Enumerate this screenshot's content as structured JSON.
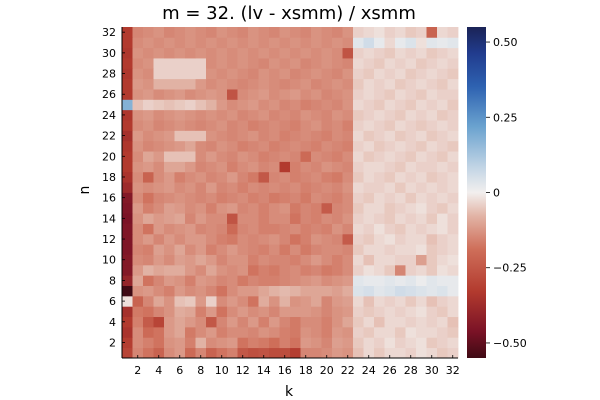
{
  "chart_data": {
    "type": "heatmap",
    "title": "m = 32. (lv - xsmm) / xsmm",
    "xlabel": "k",
    "ylabel": "n",
    "x": [
      1,
      2,
      3,
      4,
      5,
      6,
      7,
      8,
      9,
      10,
      11,
      12,
      13,
      14,
      15,
      16,
      17,
      18,
      19,
      20,
      21,
      22,
      23,
      24,
      25,
      26,
      27,
      28,
      29,
      30,
      31,
      32
    ],
    "y": [
      1,
      2,
      3,
      4,
      5,
      6,
      7,
      8,
      9,
      10,
      11,
      12,
      13,
      14,
      15,
      16,
      17,
      18,
      19,
      20,
      21,
      22,
      23,
      24,
      25,
      26,
      27,
      28,
      29,
      30,
      31,
      32
    ],
    "xticks": [
      2,
      4,
      6,
      8,
      10,
      12,
      14,
      16,
      18,
      20,
      22,
      24,
      26,
      28,
      30,
      32
    ],
    "yticks": [
      2,
      4,
      6,
      8,
      10,
      12,
      14,
      16,
      18,
      20,
      22,
      24,
      26,
      28,
      30,
      32
    ],
    "clim": [
      -0.55,
      0.55
    ],
    "colorbar_ticks": [
      0.5,
      0.25,
      0,
      -0.25,
      -0.5
    ],
    "colorbar_tick_labels": [
      "0.50",
      "0.25",
      "0",
      "−0.25",
      "−0.50"
    ],
    "colormap": {
      "stops": [
        [
          0.0,
          "#3f0a14"
        ],
        [
          0.08,
          "#7a1226"
        ],
        [
          0.2,
          "#b23a2e"
        ],
        [
          0.33,
          "#cf6f5a"
        ],
        [
          0.43,
          "#e2b4a6"
        ],
        [
          0.5,
          "#f2efee"
        ],
        [
          0.57,
          "#c6d7e6"
        ],
        [
          0.7,
          "#6aa2cf"
        ],
        [
          0.82,
          "#2e62b1"
        ],
        [
          0.92,
          "#213c8e"
        ],
        [
          1.0,
          "#1b2356"
        ]
      ]
    },
    "z": [
      [
        -0.3,
        -0.15,
        -0.18,
        -0.22,
        -0.14,
        -0.12,
        -0.2,
        -0.15,
        -0.22,
        -0.18,
        -0.16,
        -0.25,
        -0.27,
        -0.26,
        -0.28,
        -0.28,
        -0.32,
        -0.15,
        -0.15,
        -0.14,
        -0.12,
        -0.13,
        -0.06,
        -0.03,
        -0.05,
        -0.03,
        -0.03,
        -0.04,
        -0.02,
        -0.03,
        -0.05,
        -0.04
      ],
      [
        -0.32,
        -0.14,
        -0.16,
        -0.18,
        -0.13,
        -0.12,
        -0.16,
        -0.08,
        -0.14,
        -0.13,
        -0.12,
        -0.18,
        -0.16,
        -0.17,
        -0.19,
        -0.16,
        -0.18,
        -0.12,
        -0.13,
        -0.15,
        -0.11,
        -0.12,
        -0.05,
        -0.03,
        -0.04,
        -0.02,
        -0.04,
        -0.03,
        -0.02,
        -0.05,
        -0.04,
        -0.03
      ],
      [
        -0.35,
        -0.14,
        -0.2,
        -0.18,
        -0.12,
        -0.1,
        -0.17,
        -0.14,
        -0.12,
        -0.16,
        -0.14,
        -0.14,
        -0.15,
        -0.13,
        -0.14,
        -0.16,
        -0.17,
        -0.13,
        -0.14,
        -0.16,
        -0.12,
        -0.13,
        -0.04,
        -0.05,
        -0.03,
        -0.03,
        -0.05,
        -0.02,
        -0.03,
        -0.03,
        -0.04,
        -0.05
      ],
      [
        -0.33,
        -0.16,
        -0.24,
        -0.3,
        -0.12,
        -0.1,
        -0.12,
        -0.14,
        -0.25,
        -0.15,
        -0.12,
        -0.15,
        -0.12,
        -0.16,
        -0.12,
        -0.15,
        -0.17,
        -0.14,
        -0.14,
        -0.16,
        -0.13,
        -0.1,
        -0.05,
        -0.03,
        -0.06,
        -0.03,
        -0.03,
        -0.04,
        -0.03,
        -0.04,
        -0.03,
        -0.06
      ],
      [
        -0.36,
        -0.17,
        -0.18,
        -0.15,
        -0.13,
        -0.09,
        -0.1,
        -0.16,
        -0.12,
        -0.18,
        -0.14,
        -0.12,
        -0.14,
        -0.13,
        -0.15,
        -0.12,
        -0.12,
        -0.12,
        -0.13,
        -0.15,
        -0.13,
        -0.12,
        -0.04,
        -0.05,
        -0.04,
        -0.03,
        -0.04,
        -0.03,
        -0.02,
        -0.04,
        -0.05,
        -0.03
      ],
      [
        -0.02,
        -0.22,
        -0.15,
        -0.1,
        -0.13,
        -0.06,
        -0.05,
        -0.12,
        -0.04,
        -0.14,
        -0.12,
        -0.14,
        -0.18,
        -0.09,
        -0.13,
        -0.08,
        -0.13,
        -0.12,
        -0.1,
        -0.15,
        -0.12,
        -0.11,
        -0.03,
        -0.06,
        -0.03,
        -0.04,
        -0.03,
        -0.05,
        -0.03,
        -0.06,
        -0.04,
        -0.03
      ],
      [
        -0.55,
        -0.13,
        -0.12,
        -0.14,
        -0.16,
        -0.12,
        -0.14,
        -0.13,
        -0.15,
        -0.18,
        -0.14,
        -0.12,
        -0.12,
        -0.1,
        -0.08,
        -0.07,
        -0.08,
        -0.1,
        -0.1,
        -0.1,
        -0.11,
        -0.09,
        0.04,
        0.05,
        0.03,
        0.04,
        0.06,
        0.05,
        0.04,
        0.03,
        0.04,
        0.02
      ],
      [
        -0.4,
        -0.1,
        -0.18,
        -0.15,
        -0.12,
        -0.13,
        -0.16,
        -0.12,
        -0.13,
        -0.15,
        -0.14,
        -0.17,
        -0.15,
        -0.16,
        -0.16,
        -0.15,
        -0.14,
        -0.13,
        -0.12,
        -0.14,
        -0.13,
        -0.12,
        0.03,
        0.02,
        0.02,
        0.03,
        0.02,
        0.03,
        0.01,
        0.03,
        0.02,
        0.02
      ],
      [
        -0.44,
        -0.12,
        -0.08,
        -0.1,
        -0.09,
        -0.09,
        -0.12,
        -0.14,
        -0.1,
        -0.13,
        -0.14,
        -0.13,
        -0.18,
        -0.16,
        -0.17,
        -0.15,
        -0.14,
        -0.16,
        -0.15,
        -0.17,
        -0.16,
        -0.14,
        -0.04,
        -0.02,
        -0.03,
        -0.05,
        -0.15,
        -0.04,
        -0.03,
        -0.05,
        -0.02,
        -0.03
      ],
      [
        -0.44,
        -0.14,
        -0.15,
        -0.12,
        -0.14,
        -0.11,
        -0.12,
        -0.1,
        -0.12,
        -0.15,
        -0.13,
        -0.13,
        -0.16,
        -0.14,
        -0.15,
        -0.15,
        -0.16,
        -0.14,
        -0.12,
        -0.14,
        -0.16,
        -0.14,
        -0.03,
        -0.06,
        -0.03,
        -0.03,
        -0.04,
        -0.04,
        -0.11,
        -0.05,
        -0.03,
        -0.02
      ],
      [
        -0.45,
        -0.15,
        -0.16,
        -0.11,
        -0.13,
        -0.1,
        -0.14,
        -0.12,
        -0.16,
        -0.14,
        -0.12,
        -0.14,
        -0.15,
        -0.16,
        -0.14,
        -0.17,
        -0.14,
        -0.17,
        -0.15,
        -0.14,
        -0.14,
        -0.15,
        -0.05,
        -0.03,
        -0.03,
        -0.04,
        -0.03,
        -0.03,
        -0.02,
        -0.05,
        -0.04,
        -0.03
      ],
      [
        -0.45,
        -0.14,
        -0.12,
        -0.15,
        -0.12,
        -0.14,
        -0.12,
        -0.12,
        -0.14,
        -0.16,
        -0.17,
        -0.14,
        -0.15,
        -0.14,
        -0.13,
        -0.15,
        -0.18,
        -0.16,
        -0.13,
        -0.14,
        -0.15,
        -0.24,
        -0.04,
        -0.05,
        -0.03,
        -0.02,
        -0.04,
        -0.03,
        -0.03,
        -0.06,
        -0.04,
        -0.03
      ],
      [
        -0.45,
        -0.14,
        -0.18,
        -0.12,
        -0.14,
        -0.13,
        -0.12,
        -0.15,
        -0.14,
        -0.15,
        -0.2,
        -0.15,
        -0.14,
        -0.16,
        -0.16,
        -0.15,
        -0.14,
        -0.16,
        -0.15,
        -0.16,
        -0.13,
        -0.15,
        -0.03,
        -0.04,
        -0.02,
        -0.04,
        -0.05,
        -0.03,
        -0.04,
        -0.03,
        -0.02,
        -0.04
      ],
      [
        -0.46,
        -0.13,
        -0.1,
        -0.12,
        -0.11,
        -0.1,
        -0.15,
        -0.12,
        -0.14,
        -0.14,
        -0.26,
        -0.14,
        -0.14,
        -0.16,
        -0.14,
        -0.14,
        -0.18,
        -0.15,
        -0.16,
        -0.14,
        -0.15,
        -0.13,
        -0.04,
        -0.03,
        -0.04,
        -0.05,
        -0.03,
        -0.04,
        -0.03,
        -0.05,
        -0.02,
        -0.04
      ],
      [
        -0.45,
        -0.12,
        -0.16,
        -0.14,
        -0.11,
        -0.12,
        -0.14,
        -0.13,
        -0.16,
        -0.13,
        -0.12,
        -0.15,
        -0.14,
        -0.16,
        -0.14,
        -0.13,
        -0.17,
        -0.15,
        -0.16,
        -0.24,
        -0.15,
        -0.14,
        -0.05,
        -0.03,
        -0.03,
        -0.05,
        -0.04,
        -0.03,
        -0.02,
        -0.04,
        -0.05,
        -0.03
      ],
      [
        -0.44,
        -0.14,
        -0.18,
        -0.15,
        -0.14,
        -0.13,
        -0.14,
        -0.15,
        -0.14,
        -0.16,
        -0.15,
        -0.14,
        -0.16,
        -0.15,
        -0.17,
        -0.16,
        -0.15,
        -0.17,
        -0.14,
        -0.15,
        -0.16,
        -0.14,
        -0.04,
        -0.05,
        -0.03,
        -0.04,
        -0.03,
        -0.05,
        -0.03,
        -0.04,
        -0.03,
        -0.04
      ],
      [
        -0.38,
        -0.13,
        -0.14,
        -0.13,
        -0.12,
        -0.14,
        -0.13,
        -0.15,
        -0.12,
        -0.15,
        -0.14,
        -0.16,
        -0.14,
        -0.15,
        -0.14,
        -0.15,
        -0.14,
        -0.16,
        -0.15,
        -0.14,
        -0.15,
        -0.13,
        -0.03,
        -0.04,
        -0.04,
        -0.03,
        -0.05,
        -0.03,
        -0.04,
        -0.03,
        -0.04,
        -0.03
      ],
      [
        -0.35,
        -0.14,
        -0.22,
        -0.14,
        -0.12,
        -0.16,
        -0.14,
        -0.13,
        -0.15,
        -0.14,
        -0.12,
        -0.15,
        -0.17,
        -0.25,
        -0.15,
        -0.14,
        -0.16,
        -0.15,
        -0.14,
        -0.16,
        -0.17,
        -0.14,
        -0.05,
        -0.03,
        -0.04,
        -0.05,
        -0.03,
        -0.04,
        -0.03,
        -0.05,
        -0.04,
        -0.03
      ],
      [
        -0.33,
        -0.13,
        -0.12,
        -0.14,
        -0.1,
        -0.1,
        -0.12,
        -0.15,
        -0.14,
        -0.13,
        -0.16,
        -0.14,
        -0.13,
        -0.15,
        -0.14,
        -0.33,
        -0.16,
        -0.14,
        -0.15,
        -0.13,
        -0.14,
        -0.15,
        -0.04,
        -0.03,
        -0.03,
        -0.04,
        -0.05,
        -0.03,
        -0.04,
        -0.04,
        -0.03,
        -0.04
      ],
      [
        -0.33,
        -0.14,
        -0.1,
        -0.12,
        -0.06,
        -0.06,
        -0.06,
        -0.14,
        -0.12,
        -0.14,
        -0.15,
        -0.13,
        -0.14,
        -0.16,
        -0.15,
        -0.14,
        -0.15,
        -0.2,
        -0.14,
        -0.15,
        -0.16,
        -0.14,
        -0.03,
        -0.05,
        -0.04,
        -0.03,
        -0.04,
        -0.05,
        -0.03,
        -0.04,
        -0.05,
        -0.03
      ],
      [
        -0.34,
        -0.13,
        -0.15,
        -0.14,
        -0.13,
        -0.12,
        -0.1,
        -0.14,
        -0.15,
        -0.13,
        -0.14,
        -0.16,
        -0.15,
        -0.14,
        -0.16,
        -0.15,
        -0.14,
        -0.15,
        -0.16,
        -0.14,
        -0.15,
        -0.16,
        -0.04,
        -0.03,
        -0.05,
        -0.04,
        -0.03,
        -0.04,
        -0.05,
        -0.03,
        -0.04,
        -0.05
      ],
      [
        -0.36,
        -0.12,
        -0.14,
        -0.13,
        -0.12,
        -0.06,
        -0.06,
        -0.06,
        -0.13,
        -0.14,
        -0.15,
        -0.14,
        -0.13,
        -0.15,
        -0.14,
        -0.16,
        -0.15,
        -0.14,
        -0.15,
        -0.16,
        -0.14,
        -0.15,
        -0.03,
        -0.05,
        -0.04,
        -0.03,
        -0.05,
        -0.04,
        -0.03,
        -0.05,
        -0.04,
        -0.03
      ],
      [
        -0.33,
        -0.14,
        -0.13,
        -0.15,
        -0.14,
        -0.13,
        -0.14,
        -0.15,
        -0.14,
        -0.13,
        -0.15,
        -0.14,
        -0.16,
        -0.15,
        -0.14,
        -0.15,
        -0.16,
        -0.14,
        -0.13,
        -0.15,
        -0.14,
        -0.16,
        -0.04,
        -0.03,
        -0.04,
        -0.05,
        -0.03,
        -0.04,
        -0.05,
        -0.04,
        -0.03,
        -0.04
      ],
      [
        -0.34,
        -0.13,
        -0.12,
        -0.14,
        -0.13,
        -0.12,
        -0.13,
        -0.14,
        -0.13,
        -0.14,
        -0.13,
        -0.15,
        -0.14,
        -0.13,
        -0.15,
        -0.14,
        -0.15,
        -0.13,
        -0.14,
        -0.15,
        -0.13,
        -0.14,
        -0.05,
        -0.04,
        -0.03,
        -0.04,
        -0.05,
        -0.03,
        -0.04,
        -0.03,
        -0.05,
        -0.04
      ],
      [
        0.18,
        -0.06,
        -0.04,
        -0.05,
        -0.06,
        -0.05,
        -0.04,
        -0.06,
        -0.08,
        -0.12,
        -0.14,
        -0.13,
        -0.12,
        -0.14,
        -0.13,
        -0.15,
        -0.14,
        -0.16,
        -0.15,
        -0.14,
        -0.15,
        -0.13,
        -0.03,
        -0.04,
        -0.05,
        -0.03,
        -0.04,
        -0.05,
        -0.03,
        -0.04,
        -0.03,
        -0.05
      ],
      [
        -0.33,
        -0.13,
        -0.12,
        -0.14,
        -0.13,
        -0.12,
        -0.14,
        -0.13,
        -0.12,
        -0.13,
        -0.26,
        -0.14,
        -0.13,
        -0.12,
        -0.14,
        -0.13,
        -0.12,
        -0.14,
        -0.13,
        -0.15,
        -0.14,
        -0.13,
        -0.04,
        -0.03,
        -0.04,
        -0.05,
        -0.03,
        -0.04,
        -0.05,
        -0.03,
        -0.04,
        -0.04
      ],
      [
        -0.33,
        -0.12,
        -0.13,
        -0.08,
        -0.08,
        -0.08,
        -0.08,
        -0.12,
        -0.14,
        -0.13,
        -0.14,
        -0.15,
        -0.14,
        -0.13,
        -0.14,
        -0.15,
        -0.14,
        -0.13,
        -0.15,
        -0.14,
        -0.13,
        -0.14,
        -0.05,
        -0.03,
        -0.04,
        -0.03,
        -0.05,
        -0.04,
        -0.03,
        -0.04,
        -0.05,
        -0.03
      ],
      [
        -0.34,
        -0.13,
        -0.14,
        -0.04,
        -0.04,
        -0.04,
        -0.04,
        -0.04,
        -0.13,
        -0.14,
        -0.13,
        -0.14,
        -0.15,
        -0.13,
        -0.14,
        -0.13,
        -0.15,
        -0.14,
        -0.13,
        -0.14,
        -0.15,
        -0.13,
        -0.04,
        -0.05,
        -0.03,
        -0.04,
        -0.03,
        -0.05,
        -0.04,
        -0.03,
        -0.04,
        -0.05
      ],
      [
        -0.33,
        -0.14,
        -0.13,
        -0.04,
        -0.04,
        -0.04,
        -0.04,
        -0.04,
        -0.14,
        -0.13,
        -0.14,
        -0.13,
        -0.14,
        -0.15,
        -0.13,
        -0.14,
        -0.13,
        -0.15,
        -0.14,
        -0.13,
        -0.14,
        -0.15,
        -0.03,
        -0.04,
        -0.05,
        -0.03,
        -0.04,
        -0.03,
        -0.05,
        -0.04,
        -0.03,
        -0.04
      ],
      [
        -0.34,
        -0.13,
        -0.14,
        -0.13,
        -0.14,
        -0.13,
        -0.14,
        -0.13,
        -0.14,
        -0.13,
        -0.14,
        -0.13,
        -0.14,
        -0.13,
        -0.14,
        -0.13,
        -0.14,
        -0.13,
        -0.14,
        -0.13,
        -0.14,
        -0.26,
        -0.04,
        -0.03,
        -0.04,
        -0.05,
        -0.03,
        -0.04,
        -0.03,
        -0.05,
        -0.04,
        -0.03
      ],
      [
        -0.33,
        -0.14,
        -0.13,
        -0.14,
        -0.13,
        -0.14,
        -0.13,
        -0.14,
        -0.13,
        -0.14,
        -0.13,
        -0.14,
        -0.13,
        -0.14,
        -0.13,
        -0.14,
        -0.13,
        -0.14,
        -0.13,
        -0.14,
        -0.13,
        -0.14,
        0.03,
        0.06,
        0.02,
        -0.03,
        0.02,
        0.04,
        -0.02,
        0.03,
        0.02,
        0.03
      ],
      [
        -0.33,
        -0.15,
        -0.14,
        -0.13,
        -0.15,
        -0.14,
        -0.13,
        -0.14,
        -0.15,
        -0.13,
        -0.14,
        -0.15,
        -0.13,
        -0.14,
        -0.15,
        -0.13,
        -0.14,
        -0.15,
        -0.13,
        -0.14,
        -0.15,
        -0.13,
        -0.04,
        -0.03,
        -0.02,
        -0.04,
        -0.03,
        -0.05,
        -0.04,
        -0.22,
        -0.03,
        -0.04
      ]
    ]
  }
}
